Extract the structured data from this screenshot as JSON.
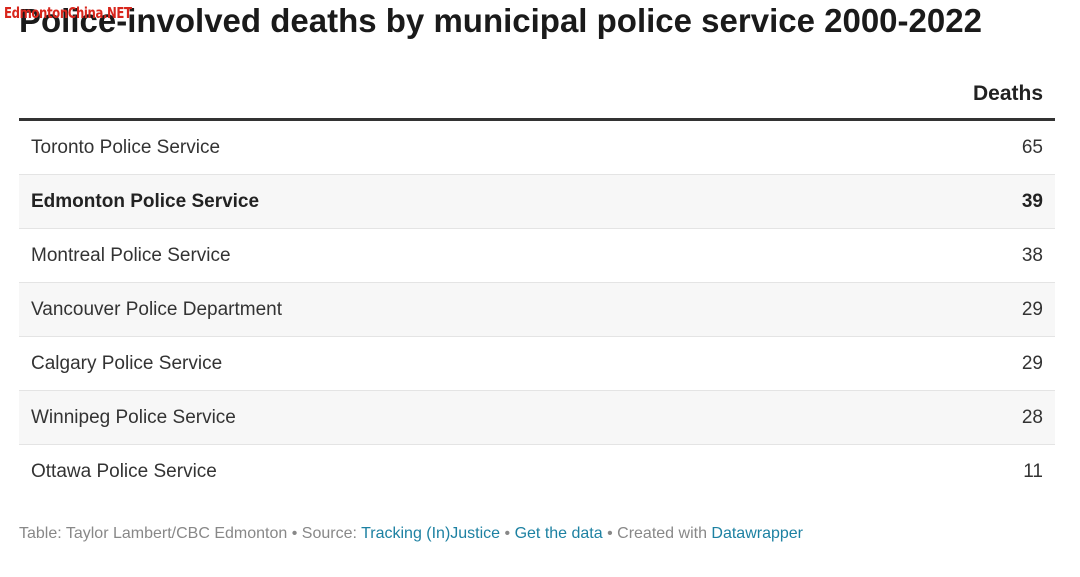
{
  "watermark": "EdmontonChina.NET",
  "title": "Police-involved deaths by municipal police service 2000-2022",
  "table": {
    "column_header": "Deaths"
  },
  "chart_data": {
    "type": "table",
    "title": "Police-involved deaths by municipal police service 2000-2022",
    "columns": [
      "",
      "Deaths"
    ],
    "rows": [
      {
        "name": "Toronto Police Service",
        "value": "65",
        "highlighted": false
      },
      {
        "name": "Edmonton Police Service",
        "value": "39",
        "highlighted": true
      },
      {
        "name": "Montreal Police Service",
        "value": "38",
        "highlighted": false
      },
      {
        "name": "Vancouver Police Department",
        "value": "29",
        "highlighted": false
      },
      {
        "name": "Calgary Police Service",
        "value": "29",
        "highlighted": false
      },
      {
        "name": "Winnipeg Police Service",
        "value": "28",
        "highlighted": false
      },
      {
        "name": "Ottawa Police Service",
        "value": "11",
        "highlighted": false
      }
    ]
  },
  "footer": {
    "credit": "Table: Taylor Lambert/CBC Edmonton",
    "separator": " • ",
    "source_prefix": "Source: ",
    "source_link": "Tracking (In)Justice",
    "data_link": "Get the data",
    "created_prefix": "Created with ",
    "created_link": "Datawrapper"
  },
  "colors": {
    "link": "#1d81a2",
    "watermark": "#d8261c",
    "stripe": "#f7f7f7"
  }
}
